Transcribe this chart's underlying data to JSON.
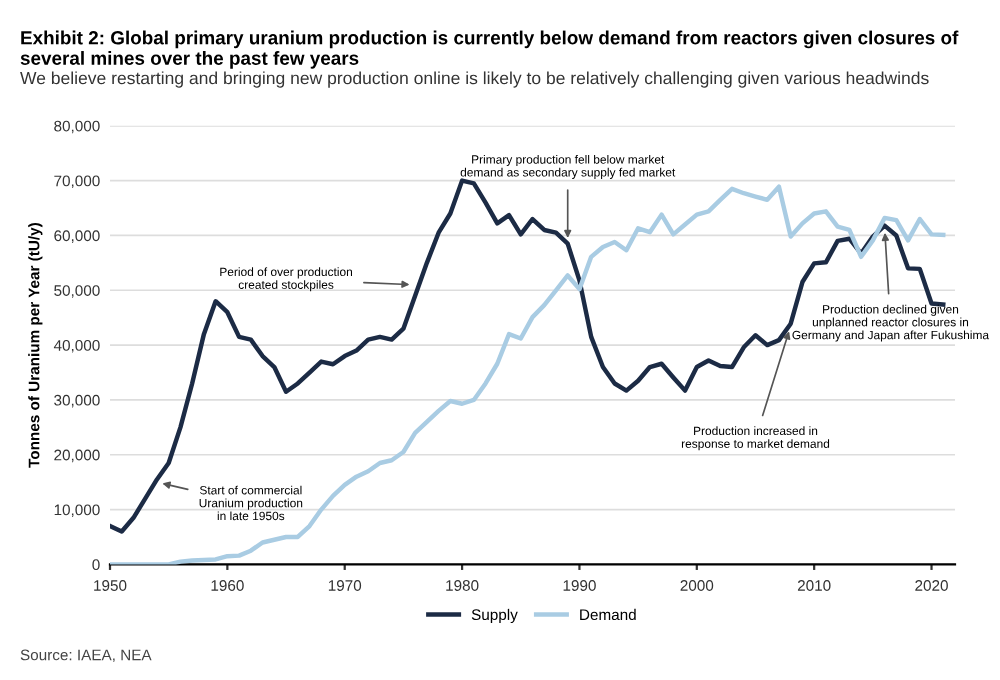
{
  "chart_data": {
    "type": "line",
    "title": "Exhibit 2: Global primary uranium production is currently below demand from reactors given closures of several mines over the past few years",
    "subtitle": "We believe restarting and bringing new production online is likely to be relatively challenging given various headwinds",
    "ylabel": "Tonnes of Uranium per Year (tU/y)",
    "x": [
      1950,
      1951,
      1952,
      1953,
      1954,
      1955,
      1956,
      1957,
      1958,
      1959,
      1960,
      1961,
      1962,
      1963,
      1964,
      1965,
      1966,
      1967,
      1968,
      1969,
      1970,
      1971,
      1972,
      1973,
      1974,
      1975,
      1976,
      1977,
      1978,
      1979,
      1980,
      1981,
      1982,
      1983,
      1984,
      1985,
      1986,
      1987,
      1988,
      1989,
      1990,
      1991,
      1992,
      1993,
      1994,
      1995,
      1996,
      1997,
      1998,
      1999,
      2000,
      2001,
      2002,
      2003,
      2004,
      2005,
      2006,
      2007,
      2008,
      2009,
      2010,
      2011,
      2012,
      2013,
      2014,
      2015,
      2016,
      2017,
      2018,
      2019,
      2020,
      2021
    ],
    "series": [
      {
        "name": "Supply",
        "color": "#1c2b45",
        "values": [
          7000,
          6000,
          8500,
          12000,
          15500,
          18500,
          25000,
          33000,
          42000,
          48000,
          46000,
          41500,
          41000,
          38000,
          36000,
          31500,
          33000,
          35000,
          37000,
          36500,
          38000,
          39000,
          41000,
          41500,
          41000,
          43000,
          49000,
          55000,
          60500,
          64000,
          70000,
          69500,
          66000,
          62200,
          63700,
          60200,
          63000,
          61000,
          60500,
          58500,
          51800,
          41500,
          36000,
          33000,
          31700,
          33500,
          36000,
          36600,
          34100,
          31700,
          36000,
          37200,
          36200,
          36000,
          39600,
          41800,
          40000,
          40900,
          43900,
          51500,
          54900,
          55100,
          59000,
          59400,
          56700,
          59800,
          61800,
          60000,
          54000,
          53900,
          47600,
          47400
        ]
      },
      {
        "name": "Demand",
        "color": "#a9cce3",
        "values": [
          0,
          0,
          0,
          0,
          0,
          0,
          500,
          700,
          800,
          900,
          1500,
          1600,
          2500,
          4000,
          4500,
          5000,
          5000,
          7000,
          10000,
          12500,
          14500,
          16000,
          17000,
          18500,
          19000,
          20500,
          24000,
          26000,
          28000,
          29800,
          29300,
          30000,
          33000,
          36600,
          42000,
          41200,
          45100,
          47300,
          50000,
          52700,
          50200,
          56100,
          57900,
          58800,
          57300,
          61300,
          60600,
          63800,
          60200,
          62000,
          63800,
          64400,
          66500,
          68500,
          67700,
          67100,
          66500,
          68900,
          59800,
          62200,
          64000,
          64400,
          61600,
          61000,
          56100,
          59100,
          63200,
          62800,
          59100,
          63000,
          60200,
          60100
        ]
      }
    ],
    "xlim": [
      1950,
      2022
    ],
    "xticks": [
      1950,
      1960,
      1970,
      1980,
      1990,
      2000,
      2010,
      2020
    ],
    "ylim": [
      0,
      80000
    ],
    "yticks": [
      {
        "value": 0,
        "label": "0"
      },
      {
        "value": 10000,
        "label": "10,000"
      },
      {
        "value": 20000,
        "label": "20,000"
      },
      {
        "value": 30000,
        "label": "30,000"
      },
      {
        "value": 40000,
        "label": "40,000"
      },
      {
        "value": 50000,
        "label": "50,000"
      },
      {
        "value": 60000,
        "label": "60,000"
      },
      {
        "value": 70000,
        "label": "70,000"
      },
      {
        "value": 80000,
        "label": "80,000"
      }
    ],
    "grid": "y",
    "legend": "bottom",
    "marker": "none",
    "line_style": "solid",
    "annotations": [
      {
        "text": "Start of commercial\nUranium production\nin late 1950s",
        "x": 1954,
        "y": 15000
      },
      {
        "text": "Period of over production\ncreated stockpiles",
        "x": 1976,
        "y": 51000
      },
      {
        "text": "Primary production fell below market\ndemand as secondary supply fed market",
        "x": 1989,
        "y": 58500
      },
      {
        "text": "Production increased in\nresponse to market demand",
        "x": 2008,
        "y": 43500
      },
      {
        "text": "Production declined given\nunplanned reactor closures in\nGermany and Japan after Fukushima",
        "x": 2016,
        "y": 61500
      },
      "Source: IAEA, NEA"
    ]
  }
}
